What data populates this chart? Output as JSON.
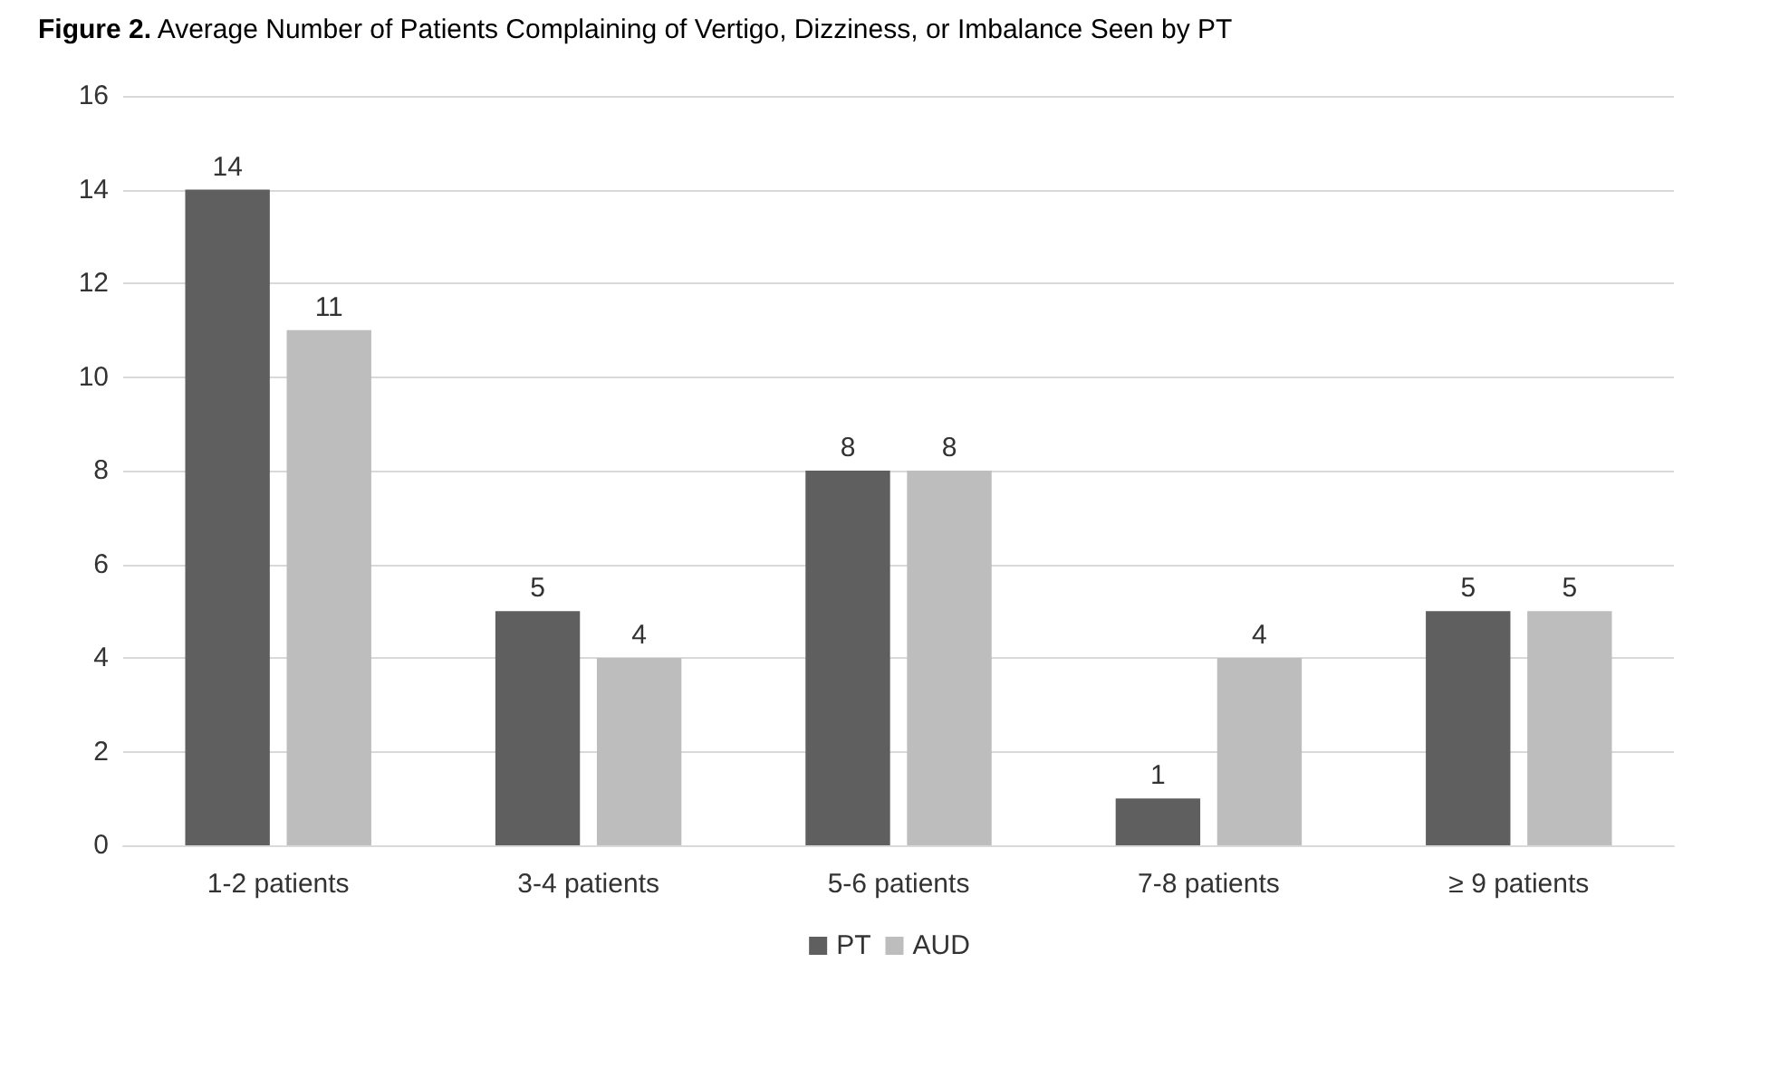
{
  "chart_data": {
    "type": "bar",
    "title": "Figure 2. Average Number of Patients Complaining of Vertigo, Dizziness, or Imbalance Seen by PT",
    "categories": [
      "1-2 patients",
      "3-4 patients",
      "5-6 patients",
      "7-8 patients",
      "≥ 9 patients"
    ],
    "series": [
      {
        "name": "PT",
        "color": "#5f5f5f",
        "values": [
          14,
          5,
          8,
          1,
          5
        ]
      },
      {
        "name": "AUD",
        "color": "#bdbdbd",
        "values": [
          11,
          4,
          8,
          4,
          5
        ]
      }
    ],
    "ylim": [
      0,
      16
    ],
    "yticks": [
      0,
      2,
      4,
      6,
      8,
      10,
      12,
      14,
      16
    ],
    "grid": "y",
    "legend": "bottom",
    "data_labels": true
  }
}
